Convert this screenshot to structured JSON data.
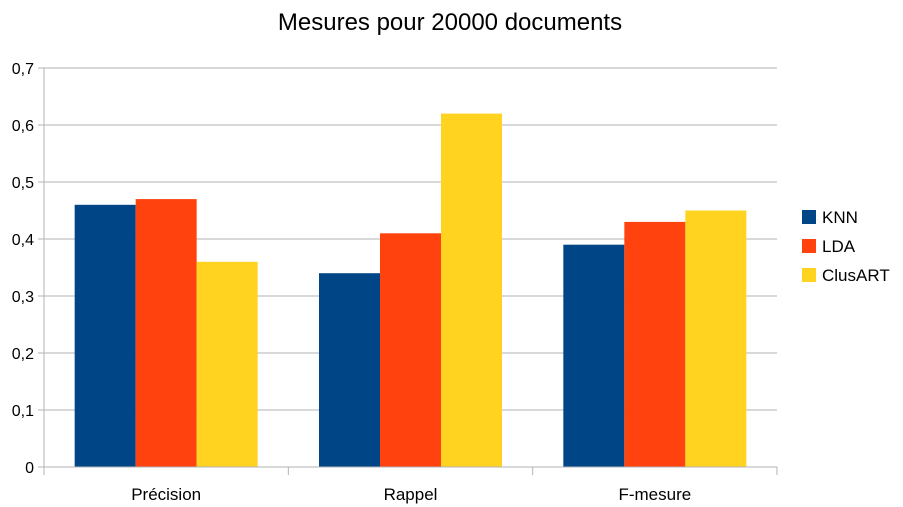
{
  "chart_data": {
    "type": "bar",
    "title": "Mesures pour 20000 documents",
    "categories": [
      "Précision",
      "Rappel",
      "F-mesure"
    ],
    "series": [
      {
        "name": "KNN",
        "color": "#004586",
        "values": [
          0.46,
          0.34,
          0.39
        ]
      },
      {
        "name": "LDA",
        "color": "#ff420e",
        "values": [
          0.47,
          0.41,
          0.43
        ]
      },
      {
        "name": "ClusART",
        "color": "#ffd320",
        "values": [
          0.36,
          0.62,
          0.45
        ]
      }
    ],
    "ylim": [
      0,
      0.7
    ],
    "yticks": [
      "0",
      "0,1",
      "0,2",
      "0,3",
      "0,4",
      "0,5",
      "0,6",
      "0,7"
    ],
    "grid": true,
    "legend_position": "right"
  }
}
